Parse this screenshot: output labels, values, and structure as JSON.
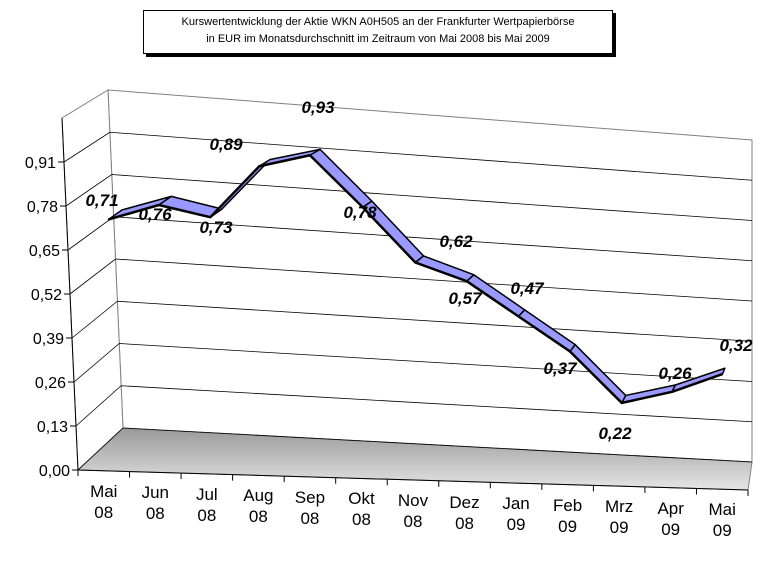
{
  "chart_data": {
    "type": "line3d",
    "title": [
      "Kurswertentwicklung der Aktie WKN A0H505 an der Frankfurter Wertpapierbörse",
      "in EUR im Monatsdurchschnitt im Zeitraum von Mai 2008 bis Mai 2009"
    ],
    "categories": [
      "Mai 08",
      "Jun 08",
      "Jul 08",
      "Aug 08",
      "Sep 08",
      "Okt 08",
      "Nov 08",
      "Dez 08",
      "Jan 09",
      "Feb 09",
      "Mrz 09",
      "Apr 09",
      "Mai 09"
    ],
    "values": [
      0.71,
      0.76,
      0.73,
      0.89,
      0.93,
      0.78,
      0.62,
      0.57,
      0.47,
      0.37,
      0.22,
      0.26,
      0.32
    ],
    "value_labels": [
      "0,71",
      "0,76",
      "0,73",
      "0,89",
      "0,93",
      "0,78",
      "0,62",
      "0,57",
      "0,47",
      "0,37",
      "0,22",
      "0,26",
      "0,32"
    ],
    "color": "#9999ff",
    "ylim": [
      0,
      1.04
    ],
    "yticks": [
      {
        "value": 0,
        "label": "0,00"
      },
      {
        "value": 0.13,
        "label": "0,13"
      },
      {
        "value": 0.26,
        "label": "0,26"
      },
      {
        "value": 0.39,
        "label": "0,39"
      },
      {
        "value": 0.52,
        "label": "0,52"
      },
      {
        "value": 0.65,
        "label": "0,65"
      },
      {
        "value": 0.78,
        "label": "0,78"
      },
      {
        "value": 0.91,
        "label": "0,91"
      }
    ],
    "grid": true
  }
}
